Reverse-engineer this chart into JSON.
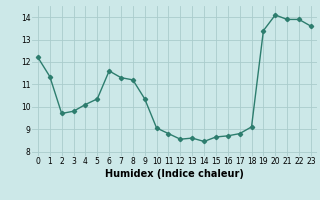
{
  "x": [
    0,
    1,
    2,
    3,
    4,
    5,
    6,
    7,
    8,
    9,
    10,
    11,
    12,
    13,
    14,
    15,
    16,
    17,
    18,
    19,
    20,
    21,
    22,
    23
  ],
  "y": [
    12.2,
    11.35,
    9.7,
    9.8,
    10.1,
    10.35,
    11.6,
    11.3,
    11.2,
    10.35,
    9.05,
    8.8,
    8.55,
    8.6,
    8.45,
    8.65,
    8.7,
    8.8,
    9.1,
    13.4,
    14.1,
    13.9,
    13.9,
    13.6
  ],
  "line_color": "#2d7d6e",
  "marker": "D",
  "marker_size": 2.2,
  "bg_color": "#cce8e8",
  "grid_color": "#aacccc",
  "xlabel": "Humidex (Indice chaleur)",
  "xlim": [
    -0.5,
    23.5
  ],
  "ylim": [
    7.8,
    14.5
  ],
  "yticks": [
    8,
    9,
    10,
    11,
    12,
    13,
    14
  ],
  "xticks": [
    0,
    1,
    2,
    3,
    4,
    5,
    6,
    7,
    8,
    9,
    10,
    11,
    12,
    13,
    14,
    15,
    16,
    17,
    18,
    19,
    20,
    21,
    22,
    23
  ],
  "tick_fontsize": 5.5,
  "xlabel_fontsize": 7.0,
  "line_width": 1.0
}
